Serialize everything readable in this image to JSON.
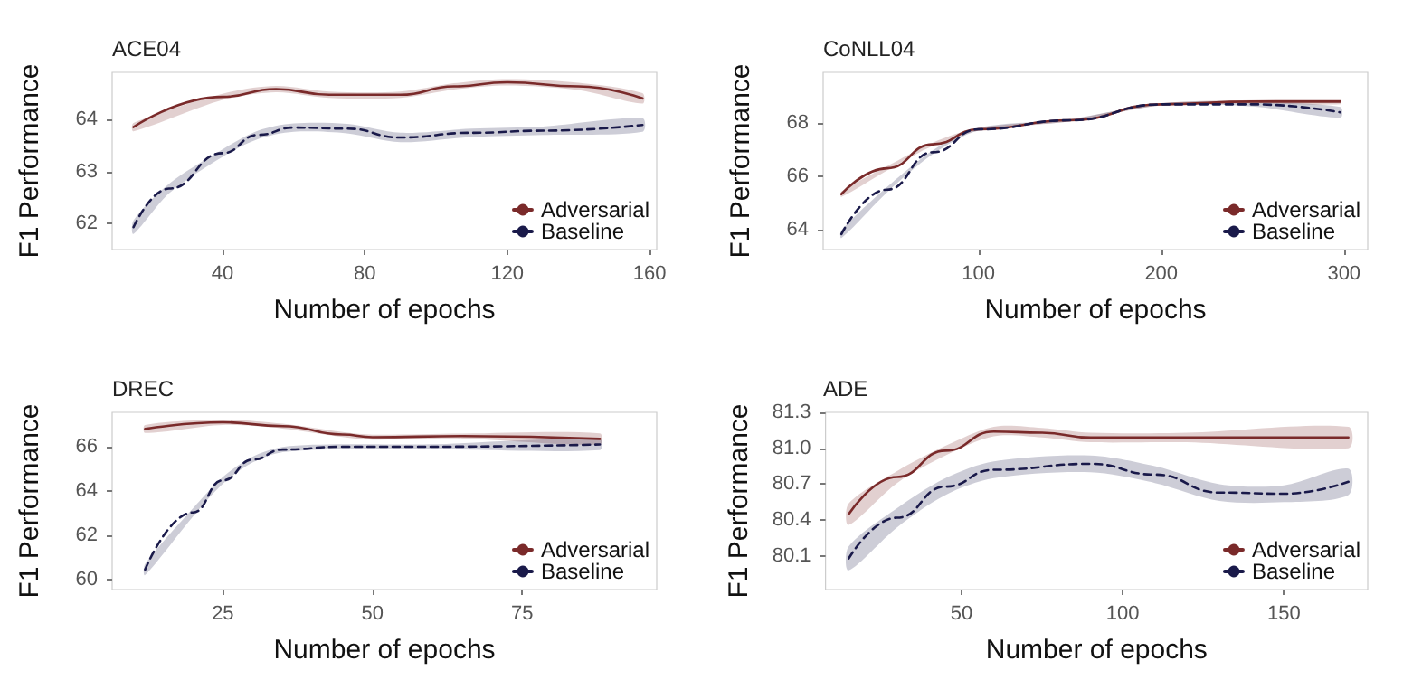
{
  "chart_data": [
    {
      "type": "line",
      "title": "ACE04",
      "xlabel": "Number of epochs",
      "ylabel": "F1 Performance",
      "xlim": [
        9,
        162
      ],
      "xticks": [
        40,
        80,
        120,
        160
      ],
      "ylim": [
        61.5,
        64.9
      ],
      "yticks": [
        62,
        63,
        64
      ],
      "legend": "bottom right",
      "grid": false,
      "marker": "none",
      "series": [
        {
          "name": "Adversarial",
          "color": "#7a2a2a",
          "line_style": "solid",
          "x": [
            15,
            40,
            55,
            70,
            90,
            105,
            120,
            140,
            158
          ],
          "values": [
            63.85,
            64.43,
            64.58,
            64.47,
            64.47,
            64.63,
            64.71,
            64.63,
            64.4
          ],
          "lower": [
            63.77,
            64.37,
            64.52,
            64.41,
            64.41,
            64.57,
            64.65,
            64.56,
            64.3
          ],
          "upper": [
            63.93,
            64.49,
            64.64,
            64.53,
            64.53,
            64.69,
            64.77,
            64.7,
            64.5
          ]
        },
        {
          "name": "Baseline",
          "color": "#1a1a4a",
          "line_style": "dashed",
          "x": [
            15,
            25,
            40,
            50,
            60,
            75,
            90,
            110,
            130,
            158
          ],
          "values": [
            61.93,
            62.67,
            63.35,
            63.7,
            63.84,
            63.82,
            63.65,
            63.74,
            63.78,
            63.89
          ],
          "lower": [
            61.8,
            62.58,
            63.28,
            63.62,
            63.76,
            63.73,
            63.56,
            63.66,
            63.7,
            63.76
          ],
          "upper": [
            62.06,
            62.76,
            63.42,
            63.78,
            63.92,
            63.91,
            63.74,
            63.82,
            63.86,
            64.02
          ]
        }
      ]
    },
    {
      "type": "line",
      "title": "CoNLL04",
      "xlabel": "Number of epochs",
      "ylabel": "F1 Performance",
      "xlim": [
        15,
        313
      ],
      "xticks": [
        100,
        200,
        300
      ],
      "ylim": [
        63.25,
        69.9
      ],
      "yticks": [
        64,
        66,
        68
      ],
      "legend": "bottom right",
      "grid": false,
      "marker": "none",
      "series": [
        {
          "name": "Adversarial",
          "color": "#7a2a2a",
          "line_style": "solid",
          "x": [
            25,
            50,
            75,
            100,
            150,
            200,
            250,
            298
          ],
          "values": [
            65.33,
            66.3,
            67.2,
            67.76,
            68.1,
            68.7,
            68.8,
            68.8
          ],
          "lower": [
            65.23,
            66.22,
            67.14,
            67.71,
            68.06,
            68.66,
            68.74,
            68.7
          ],
          "upper": [
            65.43,
            66.38,
            67.26,
            67.81,
            68.14,
            68.74,
            68.86,
            68.9
          ]
        },
        {
          "name": "Baseline",
          "color": "#1a1a4a",
          "line_style": "dashed",
          "x": [
            25,
            50,
            75,
            100,
            150,
            200,
            250,
            298
          ],
          "values": [
            63.83,
            65.5,
            66.9,
            67.76,
            68.1,
            68.7,
            68.7,
            68.4
          ],
          "lower": [
            63.68,
            65.4,
            66.83,
            67.71,
            68.06,
            68.66,
            68.62,
            68.2
          ],
          "upper": [
            63.98,
            65.6,
            66.97,
            67.81,
            68.14,
            68.74,
            68.78,
            68.6
          ]
        }
      ]
    },
    {
      "type": "line",
      "title": "DREC",
      "xlabel": "Number of epochs",
      "ylabel": "F1 Performance",
      "xlim": [
        6.5,
        97.5
      ],
      "xticks": [
        25,
        50,
        75
      ],
      "ylim": [
        59.55,
        67.55
      ],
      "yticks": [
        60,
        62,
        64,
        66
      ],
      "legend": "bottom right",
      "grid": false,
      "marker": "none",
      "series": [
        {
          "name": "Adversarial",
          "color": "#7a2a2a",
          "line_style": "solid",
          "x": [
            12,
            25,
            35,
            45,
            50,
            65,
            88
          ],
          "values": [
            66.8,
            67.1,
            66.93,
            66.55,
            66.43,
            66.48,
            66.35
          ],
          "lower": [
            66.62,
            66.98,
            66.82,
            66.44,
            66.32,
            66.37,
            66.1
          ],
          "upper": [
            66.98,
            67.22,
            67.04,
            66.66,
            66.54,
            66.59,
            66.6
          ]
        },
        {
          "name": "Baseline",
          "color": "#1a1a4a",
          "line_style": "dashed",
          "x": [
            12,
            20,
            25,
            30,
            35,
            45,
            60,
            88
          ],
          "values": [
            60.45,
            63.03,
            64.48,
            65.42,
            65.87,
            66.0,
            66.0,
            66.1
          ],
          "lower": [
            60.2,
            62.85,
            64.33,
            65.29,
            65.75,
            65.89,
            65.89,
            65.85
          ],
          "upper": [
            60.7,
            63.21,
            64.63,
            65.55,
            65.99,
            66.11,
            66.11,
            66.35
          ]
        }
      ]
    },
    {
      "type": "line",
      "title": "ADE",
      "xlabel": "Number of epochs",
      "ylabel": "F1 Performance",
      "xlim": [
        7.8,
        176
      ],
      "xticks": [
        50,
        100,
        150
      ],
      "ylim": [
        79.82,
        81.3
      ],
      "yticks": [
        80.1,
        80.4,
        80.7,
        {
          "value": 81,
          "label": "81.0"
        },
        81.3
      ],
      "legend": "bottom right",
      "grid": false,
      "marker": "none",
      "series": [
        {
          "name": "Adversarial",
          "color": "#7a2a2a",
          "line_style": "solid",
          "x": [
            15,
            30,
            45,
            60,
            75,
            90,
            120,
            170
          ],
          "values": [
            80.45,
            80.76,
            80.98,
            81.14,
            81.13,
            81.09,
            81.09,
            81.09
          ],
          "lower": [
            80.36,
            80.71,
            80.94,
            81.1,
            81.09,
            81.05,
            81.05,
            81.0
          ],
          "upper": [
            80.54,
            80.81,
            81.02,
            81.18,
            81.17,
            81.13,
            81.13,
            81.18
          ]
        },
        {
          "name": "Baseline",
          "color": "#1a1a4a",
          "line_style": "dashed",
          "x": [
            15,
            30,
            45,
            60,
            90,
            110,
            130,
            150,
            170
          ],
          "values": [
            80.08,
            80.42,
            80.68,
            80.82,
            80.87,
            80.78,
            80.63,
            80.62,
            80.72
          ],
          "lower": [
            79.98,
            80.34,
            80.61,
            80.75,
            80.8,
            80.71,
            80.56,
            80.55,
            80.61
          ],
          "upper": [
            80.18,
            80.5,
            80.75,
            80.89,
            80.94,
            80.85,
            80.7,
            80.69,
            80.83
          ]
        }
      ]
    }
  ]
}
